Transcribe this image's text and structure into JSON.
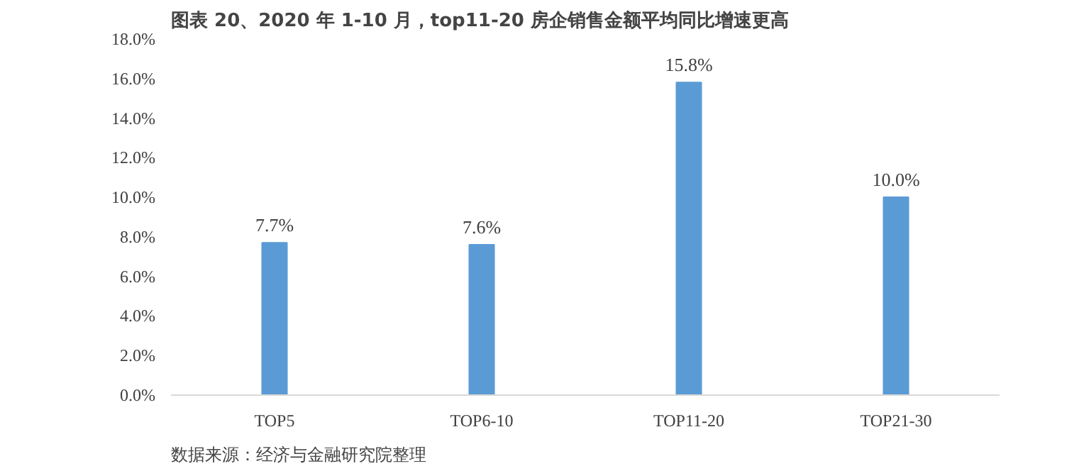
{
  "chart_data": {
    "type": "bar",
    "title": "图表 20、2020 年 1-10 月，top11-20 房企销售金额平均同比增速更高",
    "categories": [
      "TOP5",
      "TOP6-10",
      "TOP11-20",
      "TOP21-30"
    ],
    "values": [
      7.7,
      7.6,
      15.8,
      10.0
    ],
    "value_labels": [
      "7.7%",
      "7.6%",
      "15.8%",
      "10.0%"
    ],
    "color": "#5b9bd5",
    "ylim": [
      0,
      18
    ],
    "yticks": [
      {
        "value": 0,
        "label": "0.0%"
      },
      {
        "value": 2,
        "label": "2.0%"
      },
      {
        "value": 4,
        "label": "4.0%"
      },
      {
        "value": 6,
        "label": "6.0%"
      },
      {
        "value": 8,
        "label": "8.0%"
      },
      {
        "value": 10,
        "label": "10.0%"
      },
      {
        "value": 12,
        "label": "12.0%"
      },
      {
        "value": 14,
        "label": "14.0%"
      },
      {
        "value": 16,
        "label": "16.0%"
      },
      {
        "value": 18,
        "label": "18.0%"
      }
    ],
    "grid": false,
    "annotations": [
      "数据来源：经济与金融研究院整理"
    ]
  }
}
